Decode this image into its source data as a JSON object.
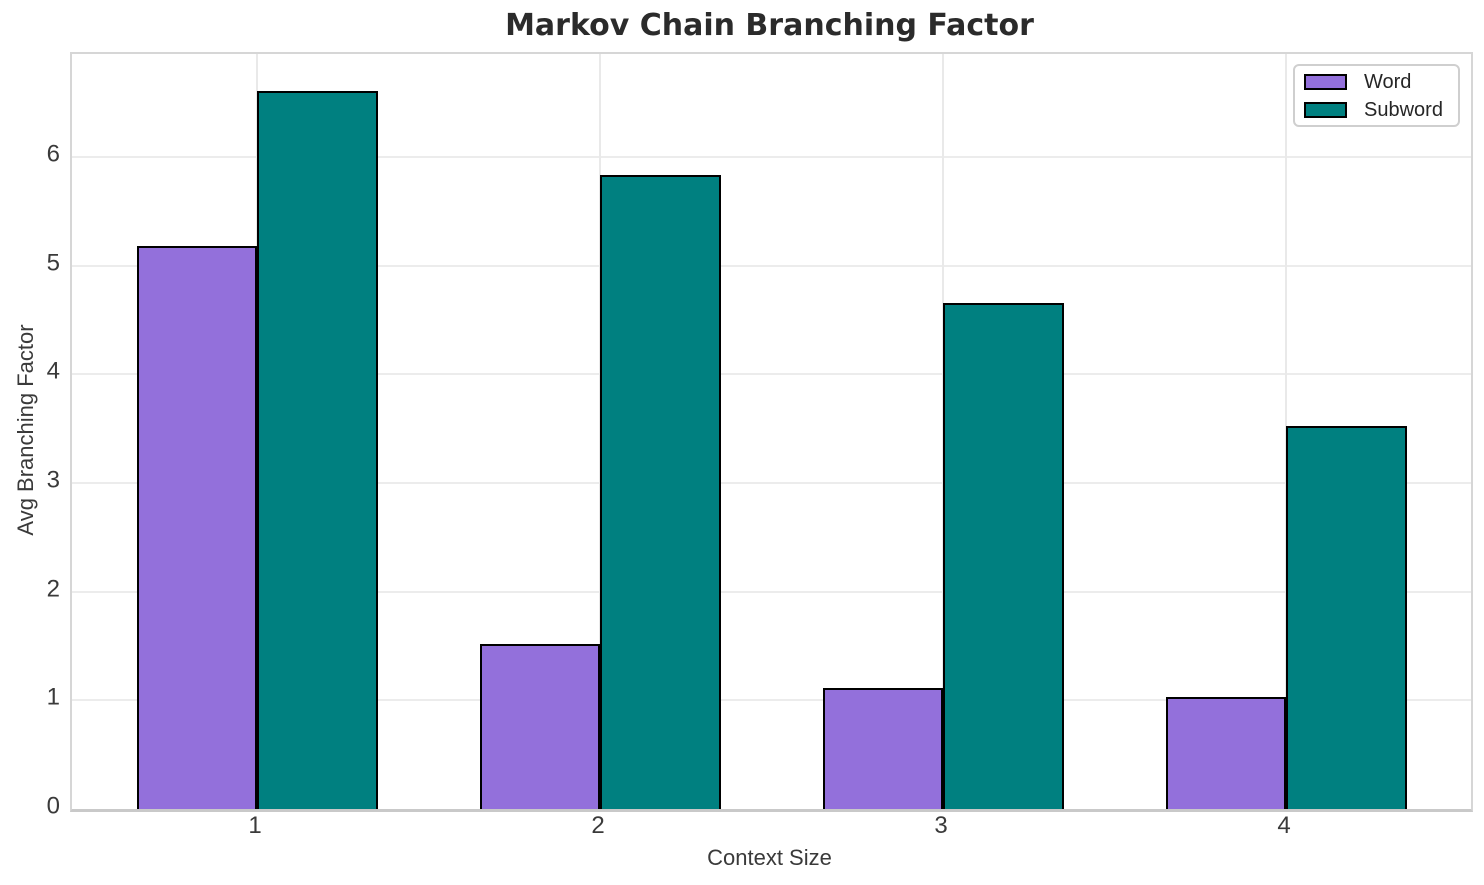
{
  "title": "Markov Chain Branching Factor",
  "chart_data": {
    "type": "bar",
    "title": "Markov Chain Branching Factor",
    "xlabel": "Context Size",
    "ylabel": "Avg Branching Factor",
    "categories": [
      "1",
      "2",
      "3",
      "4"
    ],
    "series": [
      {
        "name": "Word",
        "color": "#9370db",
        "values": [
          5.18,
          1.52,
          1.11,
          1.03
        ]
      },
      {
        "name": "Subword",
        "color": "#008080",
        "values": [
          6.61,
          5.84,
          4.66,
          3.53
        ]
      }
    ],
    "yticks": [
      0,
      1,
      2,
      3,
      4,
      5,
      6
    ],
    "ylim": [
      0,
      6.95
    ],
    "grid": true,
    "legend_position": "upper right",
    "bar_edge_color": "#000000",
    "background_color": "#ffffff",
    "grid_color": "#ececec",
    "title_color": "#2b2b2b",
    "tick_label_color": "#3a3a3a"
  }
}
